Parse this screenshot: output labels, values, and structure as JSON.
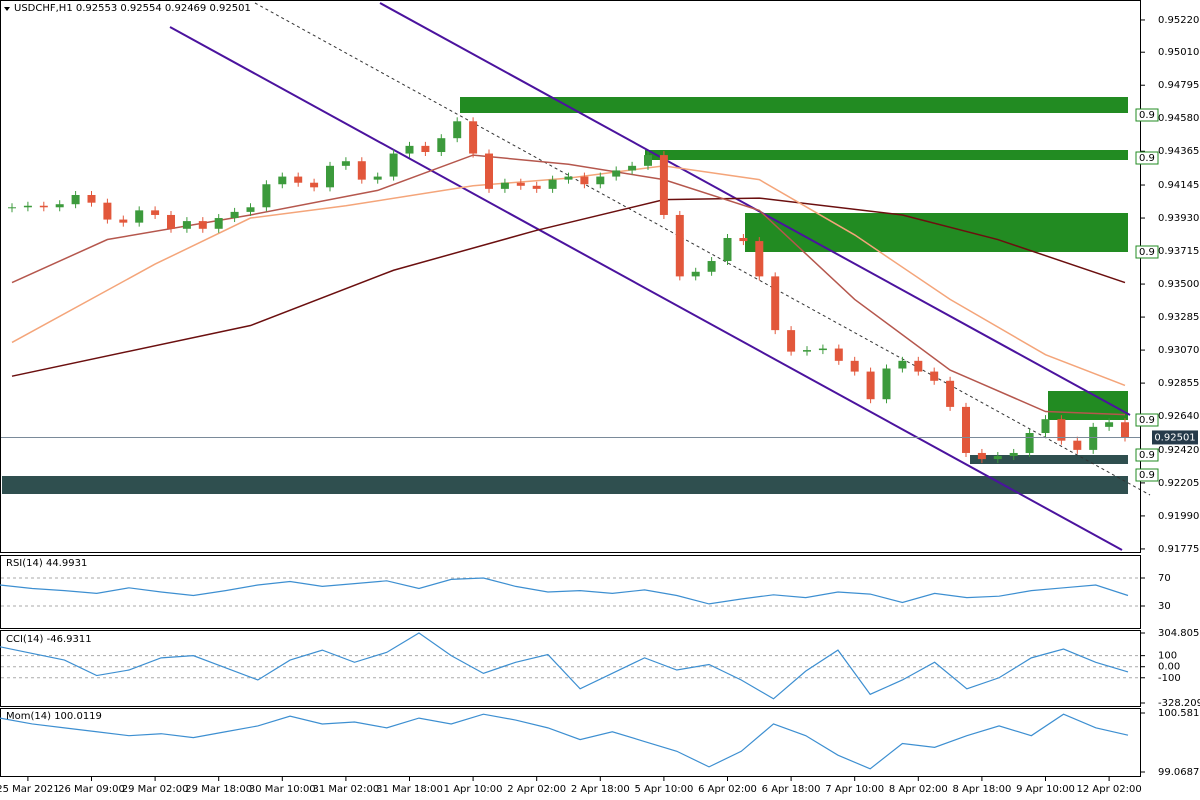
{
  "chart_data": [
    {
      "type": "candlestick",
      "title": "USDCHF,H1  0.92553 0.92554 0.92469 0.92501",
      "categories": [
        null,
        "25 Mar 2021",
        null,
        null,
        null,
        "26 Mar 09:00",
        null,
        null,
        null,
        "29 Mar 02:00",
        null,
        null,
        null,
        "29 Mar 18:00",
        null,
        null,
        null,
        "30 Mar 10:00",
        null,
        null,
        null,
        "31 Mar 02:00",
        null,
        null,
        null,
        "31 Mar 18:00",
        null,
        null,
        null,
        "1 Apr 10:00",
        null,
        null,
        null,
        "2 Apr 02:00",
        null,
        null,
        null,
        "2 Apr 18:00",
        null,
        null,
        null,
        "5 Apr 10:00",
        null,
        null,
        null,
        "6 Apr 02:00",
        null,
        null,
        null,
        "6 Apr 18:00",
        null,
        null,
        null,
        "7 Apr 10:00",
        null,
        null,
        null,
        "8 Apr 02:00",
        null,
        null,
        null,
        "8 Apr 18:00",
        null,
        null,
        null,
        "9 Apr 10:00",
        null,
        null,
        null,
        "12 Apr 02:00",
        null
      ],
      "values": [
        0.94,
        0.9401,
        0.94,
        0.9402,
        0.9408,
        0.9403,
        0.9392,
        0.939,
        0.9398,
        0.9395,
        0.9386,
        0.9391,
        0.9386,
        0.9393,
        0.9397,
        0.94,
        0.9415,
        0.942,
        0.9416,
        0.9413,
        0.9427,
        0.943,
        0.9418,
        0.942,
        0.9435,
        0.944,
        0.9436,
        0.9445,
        0.9456,
        0.9435,
        0.9412,
        0.9416,
        0.9414,
        0.9412,
        0.9418,
        0.942,
        0.9415,
        0.942,
        0.9424,
        0.9427,
        0.9434,
        0.9395,
        0.9355,
        0.9358,
        0.9365,
        0.938,
        0.9378,
        0.9355,
        0.932,
        0.9306,
        0.9307,
        0.9308,
        0.93,
        0.9293,
        0.9275,
        0.9295,
        0.93,
        0.9293,
        0.9287,
        0.927,
        0.924,
        0.9236,
        0.9238,
        0.924,
        0.9253,
        0.9262,
        0.9248,
        0.9242,
        0.9257,
        0.926,
        0.92501
      ],
      "colors": {
        "up": "#3c9a3c",
        "down": "#e2573b"
      },
      "series": [
        {
          "color": "#6b0f0f",
          "x": [
            0,
            15,
            24,
            33,
            41,
            47,
            56,
            62,
            70
          ],
          "values": [
            0.929,
            0.9323,
            0.9359,
            0.9385,
            0.9405,
            0.9406,
            0.9395,
            0.9379,
            0.9351
          ]
        },
        {
          "color": "#f4a57a",
          "x": [
            0,
            9,
            15,
            21,
            29,
            35,
            41,
            47,
            53,
            59,
            65,
            70
          ],
          "values": [
            0.9312,
            0.9363,
            0.9393,
            0.9401,
            0.9414,
            0.9419,
            0.9427,
            0.9418,
            0.9382,
            0.934,
            0.9304,
            0.9284
          ]
        },
        {
          "color": "#b5574d",
          "x": [
            0,
            6,
            15,
            23,
            29,
            35,
            41,
            47,
            53,
            59,
            65,
            70
          ],
          "values": [
            0.9351,
            0.9379,
            0.9395,
            0.9411,
            0.9434,
            0.9428,
            0.9418,
            0.9398,
            0.934,
            0.9294,
            0.9267,
            0.9265
          ]
        }
      ],
      "ylim": [
        0.91755,
        0.9535
      ],
      "yticks": [
        {
          "value": 0.9522,
          "label": "0.95220"
        },
        {
          "value": 0.9501,
          "label": "0.95010"
        },
        0.94795,
        {
          "value": 0.9458,
          "label": "0.94580"
        },
        0.94365,
        0.94145,
        {
          "value": 0.9393,
          "label": "0.93930"
        },
        0.93715,
        {
          "value": 0.935,
          "label": "0.93500"
        },
        0.93285,
        {
          "value": 0.9307,
          "label": "0.93070"
        },
        0.92855,
        {
          "value": 0.9264,
          "label": "0.92640"
        },
        {
          "value": 0.9242,
          "label": "0.92420"
        },
        0.92205,
        {
          "value": 0.9199,
          "label": "0.91990"
        },
        0.91775
      ],
      "current_price": 0.92501,
      "level_tags": [
        "0.9",
        "0.9",
        "0.9",
        "0.9",
        "0.9",
        "0.9"
      ]
    },
    {
      "type": "line",
      "title": "RSI(14) 44.9931",
      "color": "#3d8fd1",
      "values": [
        60,
        55,
        52,
        48,
        56,
        50,
        45,
        52,
        60,
        65,
        58,
        62,
        66,
        55,
        68,
        70,
        58,
        50,
        52,
        48,
        53,
        45,
        33,
        40,
        46,
        42,
        50,
        47,
        35,
        48,
        42,
        44,
        52,
        56,
        60,
        44.9931
      ],
      "ylim": [
        0,
        100
      ],
      "yticks": [
        70,
        30
      ]
    },
    {
      "type": "line",
      "title": "CCI(14) -46.9311",
      "color": "#3d8fd1",
      "values": [
        180,
        120,
        60,
        -80,
        -30,
        80,
        100,
        -10,
        -120,
        60,
        150,
        40,
        130,
        304.8,
        100,
        -60,
        40,
        110,
        -200,
        -60,
        80,
        -30,
        20,
        -120,
        -290,
        -40,
        150,
        -250,
        -120,
        40,
        -200,
        -100,
        80,
        160,
        40,
        -46.9311
      ],
      "ylim": [
        -328.2097,
        304.8055
      ],
      "yticks": [
        304.8055,
        100,
        {
          "value": 0,
          "label": "0.00"
        },
        -100,
        -328.2097
      ]
    },
    {
      "type": "line",
      "title": "Mom(14) 100.0119",
      "color": "#3d8fd1",
      "values": [
        100.45,
        100.3,
        100.2,
        100.1,
        100,
        100.05,
        99.95,
        100.1,
        100.25,
        100.5,
        100.3,
        100.35,
        100.2,
        100.45,
        100.3,
        100.55,
        100.4,
        100.2,
        99.9,
        100.1,
        99.85,
        99.6,
        99.2,
        99.6,
        100.3,
        100,
        99.5,
        99.15,
        99.8,
        99.7,
        100,
        100.25,
        100,
        100.55,
        100.2,
        100.0119
      ],
      "ylim": [
        99.0687,
        100.581
      ],
      "yticks": [
        100.581,
        99.0687
      ]
    }
  ]
}
